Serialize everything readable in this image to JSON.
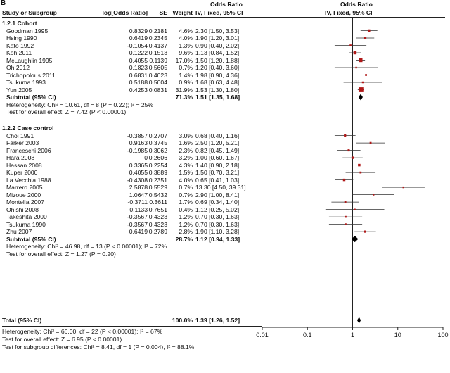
{
  "panel_label": "B",
  "columns": {
    "study": "Study or Subgroup",
    "log_or": "log[Odds Ratio]",
    "se": "SE",
    "weight": "Weight",
    "ci_header_top": "Odds Ratio",
    "ci_header_bottom": "IV, Fixed, 95% CI",
    "plot_header_top": "Odds Ratio",
    "plot_header_bottom": "IV, Fixed, 95% CI"
  },
  "groups": [
    {
      "title": "1.2.1 Cohort",
      "studies": [
        {
          "name": "Goodman 1995",
          "log_or": "0.8329",
          "se": "0.2181",
          "weight": "4.6%",
          "ci": "2.30 [1.50, 3.53]"
        },
        {
          "name": "Hsing 1990",
          "log_or": "0.6419",
          "se": "0.2345",
          "weight": "4.0%",
          "ci": "1.90 [1.20, 3.01]"
        },
        {
          "name": "Kato 1992",
          "log_or": "-0.1054",
          "se": "0.4137",
          "weight": "1.3%",
          "ci": "0.90 [0.40, 2.02]"
        },
        {
          "name": "Koh 2011",
          "log_or": "0.1222",
          "se": "0.1513",
          "weight": "9.6%",
          "ci": "1.13 [0.84, 1.52]"
        },
        {
          "name": "McLaughlin 1995",
          "log_or": "0.4055",
          "se": "0.1139",
          "weight": "17.0%",
          "ci": "1.50 [1.20, 1.88]"
        },
        {
          "name": "Oh 2012",
          "log_or": "0.1823",
          "se": "0.5605",
          "weight": "0.7%",
          "ci": "1.20 [0.40, 3.60]"
        },
        {
          "name": "Trichopolous 2011",
          "log_or": "0.6831",
          "se": "0.4023",
          "weight": "1.4%",
          "ci": "1.98 [0.90, 4.36]"
        },
        {
          "name": "Tsukuma 1993",
          "log_or": "0.5188",
          "se": "0.5004",
          "weight": "0.9%",
          "ci": "1.68 [0.63, 4.48]"
        },
        {
          "name": "Yun 2005",
          "log_or": "0.4253",
          "se": "0.0831",
          "weight": "31.9%",
          "ci": "1.53 [1.30, 1.80]"
        }
      ],
      "subtotal": {
        "label": "Subtotal (95% CI)",
        "weight": "71.3%",
        "ci": "1.51 [1.35, 1.68]"
      },
      "heterogeneity": "Heterogeneity: Chi² = 10.61, df = 8 (P = 0.22); I² = 25%",
      "overall": "Test for overall effect: Z = 7.42 (P < 0.00001)"
    },
    {
      "title": "1.2.2 Case control",
      "studies": [
        {
          "name": "Choi 1991",
          "log_or": "-0.3857",
          "se": "0.2707",
          "weight": "3.0%",
          "ci": "0.68 [0.40, 1.16]"
        },
        {
          "name": "Farker 2003",
          "log_or": "0.9163",
          "se": "0.3745",
          "weight": "1.6%",
          "ci": "2.50 [1.20, 5.21]"
        },
        {
          "name": "Franceschi 2006",
          "log_or": "-0.1985",
          "se": "0.3062",
          "weight": "2.3%",
          "ci": "0.82 [0.45, 1.49]"
        },
        {
          "name": "Hara 2008",
          "log_or": "0",
          "se": "0.2606",
          "weight": "3.2%",
          "ci": "1.00 [0.60, 1.67]"
        },
        {
          "name": "Hassan 2008",
          "log_or": "0.3365",
          "se": "0.2254",
          "weight": "4.3%",
          "ci": "1.40 [0.90, 2.18]"
        },
        {
          "name": "Kuper 2000",
          "log_or": "0.4055",
          "se": "0.3889",
          "weight": "1.5%",
          "ci": "1.50 [0.70, 3.21]"
        },
        {
          "name": "La Vecchia  1988",
          "log_or": "-0.4308",
          "se": "0.2351",
          "weight": "4.0%",
          "ci": "0.65 [0.41, 1.03]"
        },
        {
          "name": "Marrero 2005",
          "log_or": "2.5878",
          "se": "0.5529",
          "weight": "0.7%",
          "ci": "13.30 [4.50, 39.31]"
        },
        {
          "name": "Mizoue 2000",
          "log_or": "1.0647",
          "se": "0.5432",
          "weight": "0.7%",
          "ci": "2.90 [1.00, 8.41]"
        },
        {
          "name": "Montella 2007",
          "log_or": "-0.3711",
          "se": "0.3611",
          "weight": "1.7%",
          "ci": "0.69 [0.34, 1.40]"
        },
        {
          "name": "Ohishi 2008",
          "log_or": "0.1133",
          "se": "0.7651",
          "weight": "0.4%",
          "ci": "1.12 [0.25, 5.02]"
        },
        {
          "name": "Takeshita 2000",
          "log_or": "-0.3567",
          "se": "0.4323",
          "weight": "1.2%",
          "ci": "0.70 [0.30, 1.63]"
        },
        {
          "name": "Tsukuma 1990",
          "log_or": "-0.3567",
          "se": "0.4323",
          "weight": "1.2%",
          "ci": "0.70 [0.30, 1.63]"
        },
        {
          "name": "Zhu 2007",
          "log_or": "0.6419",
          "se": "0.2789",
          "weight": "2.8%",
          "ci": "1.90 [1.10, 3.28]"
        }
      ],
      "subtotal": {
        "label": "Subtotal (95% CI)",
        "weight": "28.7%",
        "ci": "1.12 [0.94, 1.33]"
      },
      "heterogeneity": "Heterogeneity: Chi² = 46.98, df = 13 (P < 0.00001); I² = 72%",
      "overall": "Test for overall effect: Z = 1.27 (P = 0.20)"
    }
  ],
  "total": {
    "label": "Total (95% CI)",
    "weight": "100.0%",
    "ci": "1.39 [1.26, 1.52]"
  },
  "footer": {
    "heterogeneity": "Heterogeneity: Chi² = 66.00, df = 22 (P < 0.00001); I² = 67%",
    "overall": "Test for overall effect: Z = 6.95 (P < 0.00001)",
    "subgroup": "Test for subgroup differences: Chi² = 8.41, df = 1 (P = 0.004), I² = 88.1%"
  },
  "chart_data": {
    "type": "forest",
    "x_scale": "log",
    "xlim": [
      0.01,
      100
    ],
    "x_ticks": [
      "0.01",
      "0.1",
      "1",
      "10",
      "100"
    ],
    "reference_line": 1,
    "studies": [
      {
        "name": "Goodman 1995",
        "or": 2.3,
        "lo": 1.5,
        "hi": 3.53,
        "weight": 4.6
      },
      {
        "name": "Hsing 1990",
        "or": 1.9,
        "lo": 1.2,
        "hi": 3.01,
        "weight": 4.0
      },
      {
        "name": "Kato 1992",
        "or": 0.9,
        "lo": 0.4,
        "hi": 2.02,
        "weight": 1.3
      },
      {
        "name": "Koh 2011",
        "or": 1.13,
        "lo": 0.84,
        "hi": 1.52,
        "weight": 9.6
      },
      {
        "name": "McLaughlin 1995",
        "or": 1.5,
        "lo": 1.2,
        "hi": 1.88,
        "weight": 17.0
      },
      {
        "name": "Oh 2012",
        "or": 1.2,
        "lo": 0.4,
        "hi": 3.6,
        "weight": 0.7
      },
      {
        "name": "Trichopolous 2011",
        "or": 1.98,
        "lo": 0.9,
        "hi": 4.36,
        "weight": 1.4
      },
      {
        "name": "Tsukuma 1993",
        "or": 1.68,
        "lo": 0.63,
        "hi": 4.48,
        "weight": 0.9
      },
      {
        "name": "Yun 2005",
        "or": 1.53,
        "lo": 1.3,
        "hi": 1.8,
        "weight": 31.9
      },
      {
        "name": "Choi 1991",
        "or": 0.68,
        "lo": 0.4,
        "hi": 1.16,
        "weight": 3.0
      },
      {
        "name": "Farker 2003",
        "or": 2.5,
        "lo": 1.2,
        "hi": 5.21,
        "weight": 1.6
      },
      {
        "name": "Franceschi 2006",
        "or": 0.82,
        "lo": 0.45,
        "hi": 1.49,
        "weight": 2.3
      },
      {
        "name": "Hara 2008",
        "or": 1.0,
        "lo": 0.6,
        "hi": 1.67,
        "weight": 3.2
      },
      {
        "name": "Hassan 2008",
        "or": 1.4,
        "lo": 0.9,
        "hi": 2.18,
        "weight": 4.3
      },
      {
        "name": "Kuper 2000",
        "or": 1.5,
        "lo": 0.7,
        "hi": 3.21,
        "weight": 1.5
      },
      {
        "name": "La Vecchia  1988",
        "or": 0.65,
        "lo": 0.41,
        "hi": 1.03,
        "weight": 4.0
      },
      {
        "name": "Marrero 2005",
        "or": 13.3,
        "lo": 4.5,
        "hi": 39.31,
        "weight": 0.7
      },
      {
        "name": "Mizoue 2000",
        "or": 2.9,
        "lo": 1.0,
        "hi": 8.41,
        "weight": 0.7
      },
      {
        "name": "Montella 2007",
        "or": 0.69,
        "lo": 0.34,
        "hi": 1.4,
        "weight": 1.7
      },
      {
        "name": "Ohishi 2008",
        "or": 1.12,
        "lo": 0.25,
        "hi": 5.02,
        "weight": 0.4
      },
      {
        "name": "Takeshita 2000",
        "or": 0.7,
        "lo": 0.3,
        "hi": 1.63,
        "weight": 1.2
      },
      {
        "name": "Tsukuma 1990",
        "or": 0.7,
        "lo": 0.3,
        "hi": 1.63,
        "weight": 1.2
      },
      {
        "name": "Zhu 2007",
        "or": 1.9,
        "lo": 1.1,
        "hi": 3.28,
        "weight": 2.8
      }
    ],
    "summaries": [
      {
        "name": "Subtotal (95% CI) 1.2.1 Cohort",
        "or": 1.51,
        "lo": 1.35,
        "hi": 1.68
      },
      {
        "name": "Subtotal (95% CI) 1.2.2 Case control",
        "or": 1.12,
        "lo": 0.94,
        "hi": 1.33
      },
      {
        "name": "Total (95% CI)",
        "or": 1.39,
        "lo": 1.26,
        "hi": 1.52
      }
    ],
    "colors": {
      "square": "#b01818",
      "ci_line": "#333333",
      "diamond": "#000000",
      "axis": "#222222"
    }
  }
}
